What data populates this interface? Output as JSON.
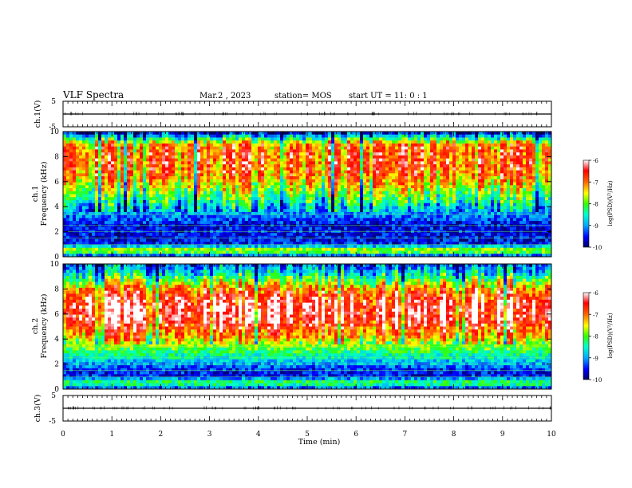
{
  "chart_data": {
    "type": "heatmap",
    "title": "VLF Spectra",
    "header": {
      "date": "Mar.2 , 2023",
      "station": "station= MOS",
      "start": "start UT =  11: 0 : 1"
    },
    "x": {
      "label": "Time (min)",
      "range": [
        0,
        10
      ],
      "ticks": [
        "0",
        "1",
        "2",
        "3",
        "4",
        "5",
        "6",
        "7",
        "8",
        "9",
        "10"
      ]
    },
    "waveforms": [
      {
        "name": "ch.1(V)",
        "range": [
          -5,
          5
        ],
        "ticks": [
          "5",
          "-5"
        ],
        "level": 0
      },
      {
        "name": "ch.3(V)",
        "range": [
          -5,
          5
        ],
        "ticks": [
          "5",
          "-5"
        ],
        "level": 0
      }
    ],
    "spectrograms": [
      {
        "ylabel_channel": "ch.1",
        "ylabel": "Frequency (kHz)",
        "yrange": [
          0,
          10
        ],
        "yticks": [
          "0",
          "2",
          "4",
          "6",
          "8",
          "10"
        ],
        "colorbar": {
          "label": "log(PSD)(V²/Hz)",
          "range": [
            -10,
            -6
          ],
          "ticks": [
            "-6",
            "-7",
            "-8",
            "-9",
            "-10"
          ]
        },
        "profile_khz": [
          0,
          0.5,
          1,
          1.5,
          2,
          2.5,
          3,
          3.5,
          4,
          4.5,
          5,
          5.5,
          6,
          6.5,
          7,
          7.5,
          8,
          8.5,
          9,
          9.5,
          10
        ],
        "profile_logpsd": [
          -9.6,
          -7.4,
          -9.5,
          -9.6,
          -9.5,
          -9.6,
          -9.3,
          -9.0,
          -8.7,
          -8.3,
          -8.0,
          -7.6,
          -7.3,
          -7.0,
          -6.9,
          -6.8,
          -6.8,
          -6.9,
          -7.1,
          -8.5,
          -9.8
        ]
      },
      {
        "ylabel_channel": "ch.2",
        "ylabel": "Frequency (kHz)",
        "yrange": [
          0,
          10
        ],
        "yticks": [
          "0",
          "2",
          "4",
          "6",
          "8",
          "10"
        ],
        "colorbar": {
          "label": "log(PSD)(V²/Hz)",
          "range": [
            -10,
            -6
          ],
          "ticks": [
            "-6",
            "-7",
            "-8",
            "-9",
            "-10"
          ]
        },
        "profile_khz": [
          0,
          0.5,
          1,
          1.5,
          2,
          2.5,
          3,
          3.5,
          4,
          4.5,
          5,
          5.5,
          6,
          6.5,
          7,
          7.5,
          8,
          8.5,
          9,
          9.5,
          10
        ],
        "profile_logpsd": [
          -9.5,
          -8.0,
          -9.5,
          -9.5,
          -9.0,
          -8.6,
          -8.2,
          -7.8,
          -7.3,
          -6.9,
          -6.6,
          -6.3,
          -6.2,
          -6.2,
          -6.3,
          -6.6,
          -7.0,
          -7.6,
          -8.3,
          -8.8,
          -9.2
        ]
      }
    ]
  },
  "colors": {
    "scale": [
      "#0000aa",
      "#0055ff",
      "#00ccff",
      "#33ff99",
      "#66ff00",
      "#ffff00",
      "#ff8800",
      "#ff1111",
      "#ffffff"
    ]
  }
}
